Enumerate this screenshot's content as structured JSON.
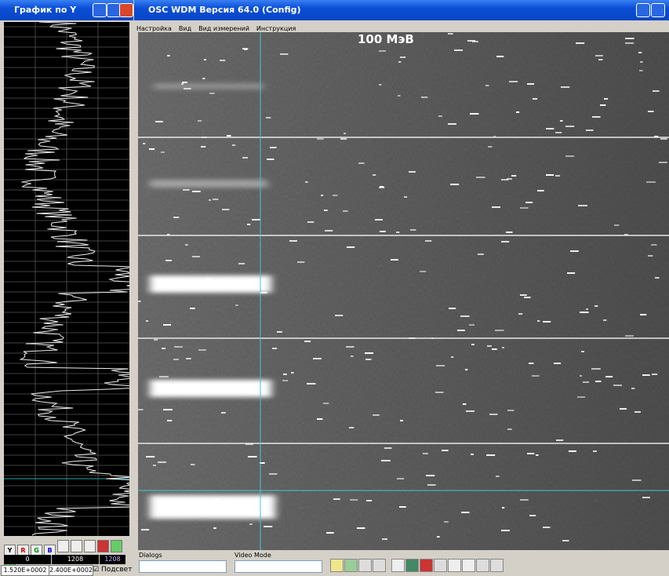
{
  "left_window": {
    "title": "График по Y",
    "buttons": [
      "Y",
      "R",
      "G",
      "B"
    ],
    "fields": [
      "0",
      "1208",
      "1208",
      "1.520E+0002",
      "2.400E+0002"
    ],
    "checkbox": "Подсвет"
  },
  "main_window": {
    "title": "OSC WDM Версия 64.0 (Config)",
    "menu": [
      "Настройка",
      "Вид",
      "Вид измерений",
      "Инструкция"
    ],
    "overlay": "100 МэВ",
    "toolbar": {
      "dialogs_label": "Dialogs",
      "video_mode_label": "Video Mode"
    }
  }
}
